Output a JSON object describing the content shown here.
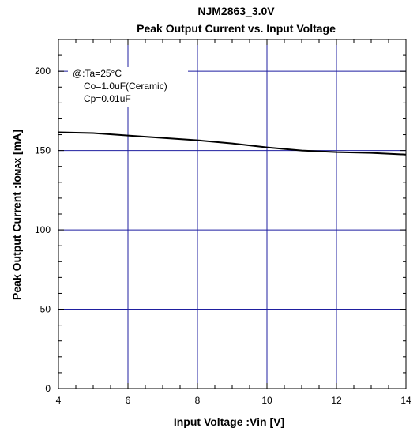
{
  "chart_data": {
    "type": "line",
    "title": "NJM2863_3.0V",
    "subtitle": "Peak Output Current vs. Input Voltage",
    "xlabel": "Input Voltage :Vin [V]",
    "ylabel": "Peak Output Current :Io",
    "ylabel_subscript": "MAX",
    "ylabel_unit": " [mA]",
    "xlim": [
      4,
      14
    ],
    "ylim": [
      0,
      220
    ],
    "x_ticks": [
      4,
      6,
      8,
      10,
      12,
      14
    ],
    "y_ticks": [
      0,
      50,
      100,
      150,
      200
    ],
    "grid": true,
    "annotations": [
      "@:Ta=25°C",
      "Co=1.0uF(Ceramic)",
      "Cp=0.01uF"
    ],
    "series": [
      {
        "x": [
          4,
          5,
          6,
          7,
          8,
          9,
          10,
          11,
          12,
          13,
          14
        ],
        "y": [
          161.5,
          161,
          159.5,
          158,
          156.5,
          154.5,
          152,
          150,
          149,
          148.5,
          147.5
        ]
      }
    ],
    "colors": {
      "grid": "#1f1fa0",
      "line": "#000000",
      "frame": "#000000"
    }
  }
}
